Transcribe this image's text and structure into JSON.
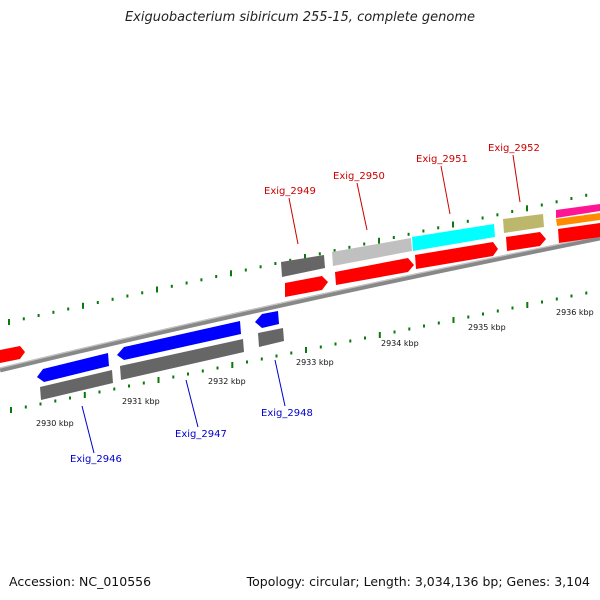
{
  "title": "Exiguobacterium sibiricum 255-15, complete genome",
  "footer": {
    "accession": "Accession: NC_010556",
    "topology": "Topology: circular; Length: 3,034,136 bp; Genes: 3,104"
  },
  "scale_labels": [
    "2930 kbp",
    "2931 kbp",
    "2932 kbp",
    "2933 kbp",
    "2934 kbp",
    "2935 kbp",
    "2936 kbp"
  ],
  "gene_labels": {
    "forward": [
      "Exig_2949",
      "Exig_2950",
      "Exig_2951",
      "Exig_2952"
    ],
    "reverse": [
      "Exig_2946",
      "Exig_2947",
      "Exig_2948"
    ]
  },
  "colors": {
    "forward_label": "#cc0000",
    "reverse_label": "#0000cc",
    "tick": "#0a7a0a",
    "backbone": "#888888",
    "gene_red": "#ff0000",
    "gene_blue": "#0000ff",
    "gene_gray": "#777777",
    "gene_lightgray": "#c0c0c0",
    "gene_cyan": "#00ffff",
    "gene_khaki": "#bdb76b",
    "gene_magenta": "#ff1493",
    "gene_orange": "#ff8c00"
  }
}
